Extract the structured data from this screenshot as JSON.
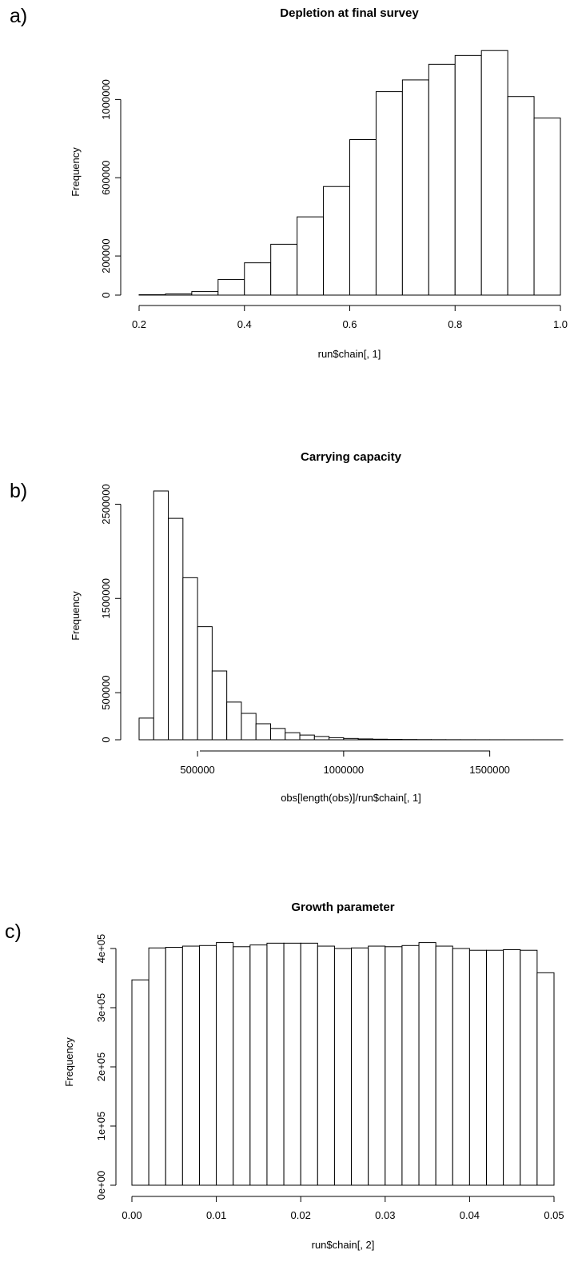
{
  "panels": [
    {
      "label": "a)"
    },
    {
      "label": "b)"
    },
    {
      "label": "c)"
    }
  ],
  "chart_data": [
    {
      "type": "bar",
      "title": "Depletion at final survey",
      "xlabel": "run$chain[, 1]",
      "ylabel": "Frequency",
      "bin_edges": [
        0.2,
        0.25,
        0.3,
        0.35,
        0.4,
        0.45,
        0.5,
        0.55,
        0.6,
        0.65,
        0.7,
        0.75,
        0.8,
        0.85,
        0.9,
        0.95,
        1.0
      ],
      "values": [
        2000,
        6000,
        18000,
        80000,
        165000,
        260000,
        400000,
        555000,
        795000,
        1040000,
        1100000,
        1180000,
        1225000,
        1250000,
        1015000,
        905000
      ],
      "xlim": [
        0.2,
        1.0
      ],
      "ylim": [
        0,
        1300000
      ],
      "xticks": [
        0.2,
        0.4,
        0.6,
        0.8,
        1.0
      ],
      "xtick_labels": [
        "0.2",
        "0.4",
        "0.6",
        "0.8",
        "1.0"
      ],
      "yticks": [
        0,
        200000,
        600000,
        1000000
      ],
      "ytick_labels": [
        "0",
        "200000",
        "600000",
        "1000000"
      ],
      "grid": false
    },
    {
      "type": "bar",
      "title": "Carrying capacity",
      "xlabel": "obs[length(obs)]/run$chain[, 1]",
      "ylabel": "Frequency",
      "bin_edges": [
        300000,
        350000,
        400000,
        450000,
        500000,
        550000,
        600000,
        650000,
        700000,
        750000,
        800000,
        850000,
        900000,
        950000,
        1000000,
        1050000,
        1100000,
        1150000,
        1200000,
        1250000,
        1300000,
        1350000,
        1400000,
        1450000,
        1500000,
        1550000,
        1600000,
        1650000,
        1700000,
        1750000
      ],
      "values": [
        230000,
        2640000,
        2350000,
        1720000,
        1200000,
        730000,
        400000,
        280000,
        170000,
        120000,
        75000,
        50000,
        35000,
        22000,
        14000,
        9000,
        6000,
        4000,
        3000,
        2000,
        1500,
        1000,
        800,
        600,
        400,
        300,
        200,
        150,
        100
      ],
      "xlim": [
        300000,
        1750000
      ],
      "ylim": [
        0,
        2750000
      ],
      "xticks": [
        500000,
        1000000,
        1500000
      ],
      "xtick_labels": [
        "500000",
        "1000000",
        "1500000"
      ],
      "yticks": [
        0,
        500000,
        1500000,
        2500000
      ],
      "ytick_labels": [
        "0",
        "500000",
        "1500000",
        "2500000"
      ],
      "grid": false
    },
    {
      "type": "bar",
      "title": "Growth parameter",
      "xlabel": "run$chain[, 2]",
      "ylabel": "Frequency",
      "bin_edges": [
        0.0,
        0.002,
        0.004,
        0.006,
        0.008,
        0.01,
        0.012,
        0.014,
        0.016,
        0.018,
        0.02,
        0.022,
        0.024,
        0.026,
        0.028,
        0.03,
        0.032,
        0.034,
        0.036,
        0.038,
        0.04,
        0.042,
        0.044,
        0.046,
        0.048,
        0.05
      ],
      "values": [
        347000,
        401000,
        402000,
        404000,
        405000,
        410000,
        403000,
        406000,
        409000,
        409000,
        409000,
        404000,
        400000,
        401000,
        404000,
        403000,
        405000,
        410000,
        404000,
        400000,
        397000,
        397000,
        398000,
        397000,
        359000
      ],
      "xlim": [
        0.0,
        0.05
      ],
      "ylim": [
        0,
        400000
      ],
      "xticks": [
        0.0,
        0.01,
        0.02,
        0.03,
        0.04,
        0.05
      ],
      "xtick_labels": [
        "0.00",
        "0.01",
        "0.02",
        "0.03",
        "0.04",
        "0.05"
      ],
      "yticks": [
        0,
        100000,
        200000,
        300000,
        400000
      ],
      "ytick_labels": [
        "0e+00",
        "1e+05",
        "2e+05",
        "3e+05",
        "4e+05"
      ],
      "grid": false
    }
  ]
}
